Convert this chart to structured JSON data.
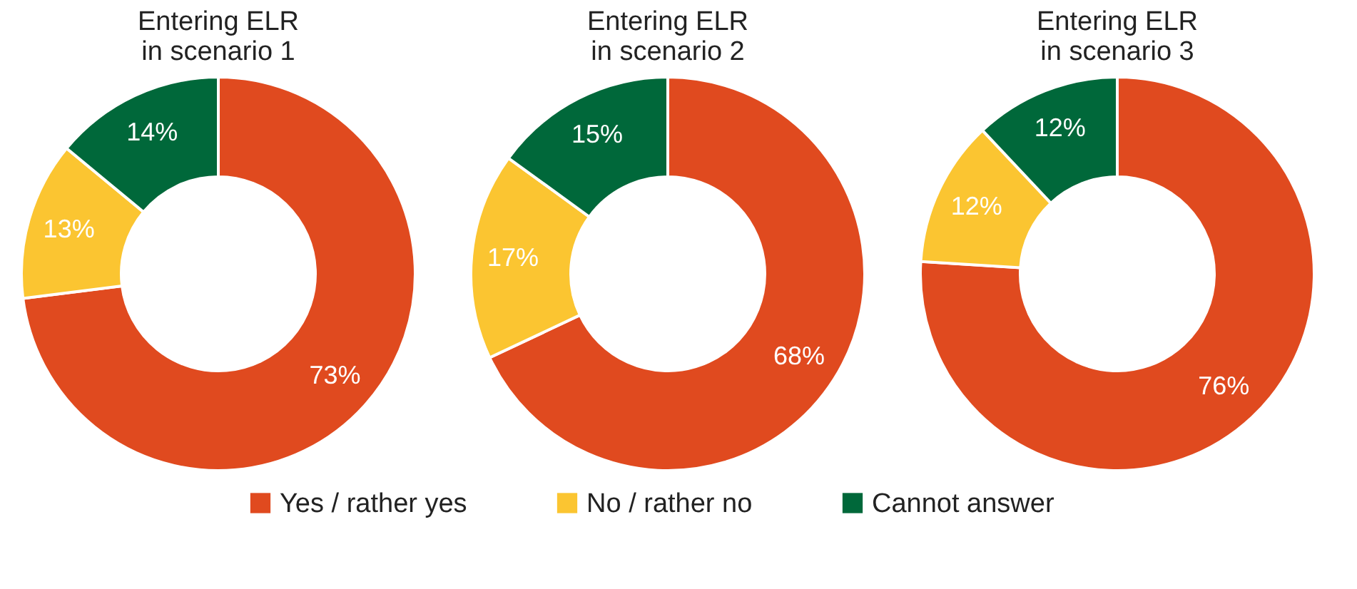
{
  "chart_data": [
    {
      "type": "donut",
      "title": "Entering ELR\nin scenario 1",
      "categories": [
        "Yes / rather yes",
        "No / rather no",
        "Cannot answer"
      ],
      "values": [
        73,
        13,
        14
      ],
      "value_labels": [
        "73%",
        "13%",
        "14%"
      ],
      "colors": [
        "#e04a1f",
        "#fbc531",
        "#00683a"
      ],
      "legend": "bottom"
    },
    {
      "type": "donut",
      "title": "Entering ELR\nin scenario 2",
      "categories": [
        null,
        null,
        null
      ],
      "values": [
        68,
        17,
        15
      ],
      "value_labels": [
        "68%",
        "17%",
        "15%"
      ],
      "colors": [
        "#e04a1f",
        "#fbc531",
        "#00683a"
      ]
    },
    {
      "type": "donut",
      "title": "Entering ELR\nin scenario 3",
      "categories": [
        null,
        null,
        null
      ],
      "values": [
        76,
        12,
        12
      ],
      "value_labels": [
        "76%",
        "12%",
        "12%"
      ],
      "colors": [
        "#e04a1f",
        "#fbc531",
        "#00683a"
      ]
    }
  ]
}
